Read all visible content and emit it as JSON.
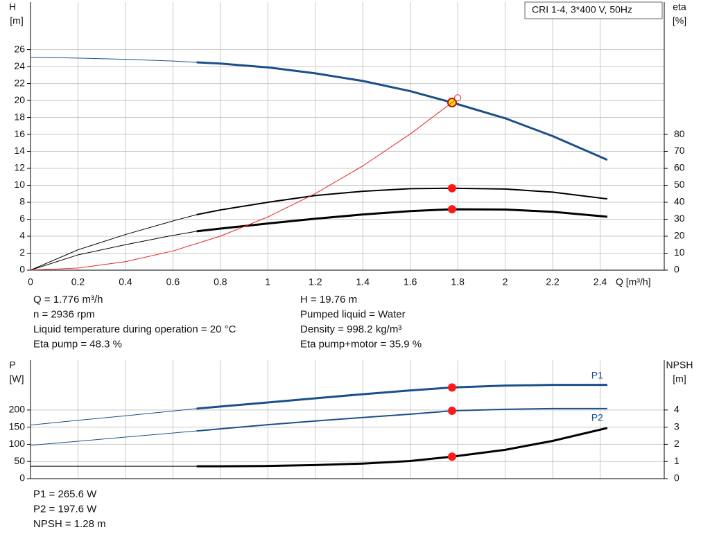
{
  "chart_data": [
    {
      "type": "line",
      "title": "CRI 1-4, 3*400 V, 50Hz",
      "ylabel": "H",
      "yunit": "[m]",
      "y2label": "eta",
      "y2unit": "[%]",
      "xlabel": "Q [m³/h]",
      "x": [
        0,
        0.2,
        0.4,
        0.6,
        0.7,
        0.8,
        1.0,
        1.2,
        1.4,
        1.6,
        1.776,
        2.0,
        2.2,
        2.43
      ],
      "xlim": [
        0,
        2.67
      ],
      "xticks": [
        0,
        0.2,
        0.4,
        0.6,
        0.8,
        1.0,
        1.2,
        1.4,
        1.6,
        1.8,
        2.0,
        2.2,
        2.4
      ],
      "xtick_labels": true,
      "ylim": [
        0,
        31.6
      ],
      "yticks": [
        0,
        2,
        4,
        6,
        8,
        10,
        12,
        14,
        16,
        18,
        20,
        22,
        24,
        26
      ],
      "y2lim": [
        0,
        158
      ],
      "y2ticks": [
        0,
        10,
        20,
        30,
        40,
        50,
        60,
        70,
        80
      ],
      "grid": true,
      "thick_range": [
        0.7,
        2.43
      ],
      "marker_x": 1.776,
      "series": [
        {
          "color": "#1a4f8a",
          "width": 3,
          "values": [
            25.1,
            25.0,
            24.85,
            24.65,
            24.5,
            24.35,
            23.9,
            23.2,
            22.3,
            21.1,
            19.76,
            17.9,
            15.8,
            13.0
          ],
          "marker": "duty-yellow"
        },
        {
          "color": "#000000",
          "width": 2,
          "axis": "y2",
          "values": [
            0,
            12,
            21,
            29,
            32.7,
            35.5,
            40,
            44,
            46.5,
            48,
            48.3,
            47.8,
            46,
            42
          ],
          "marker": "duty"
        },
        {
          "color": "#000000",
          "width": 3,
          "axis": "y2",
          "values": [
            0,
            9,
            15,
            20.5,
            22.9,
            24.5,
            27.5,
            30.3,
            32.8,
            34.8,
            35.9,
            35.7,
            34.4,
            31.5
          ],
          "marker": "duty"
        },
        {
          "color": "#e82020",
          "width": 1,
          "x": [
            0,
            0.2,
            0.4,
            0.6,
            0.8,
            1.0,
            1.2,
            1.4,
            1.6,
            1.776,
            1.8
          ],
          "values": [
            0,
            0.25,
            1.0,
            2.26,
            4.01,
            6.27,
            9.03,
            12.29,
            16.05,
            19.76,
            20.31
          ],
          "marker": "end-open"
        }
      ]
    },
    {
      "type": "line",
      "ylabel": "P",
      "yunit": "[W]",
      "y2label": "NPSH",
      "y2unit": "[m]",
      "x": [
        0,
        0.2,
        0.4,
        0.6,
        0.7,
        0.8,
        1.0,
        1.2,
        1.4,
        1.6,
        1.776,
        2.0,
        2.2,
        2.43
      ],
      "xlim": [
        0,
        2.67
      ],
      "xticks": [
        0,
        0.2,
        0.4,
        0.6,
        0.8,
        1.0,
        1.2,
        1.4,
        1.6,
        1.8,
        2.0,
        2.2,
        2.4
      ],
      "xtick_labels": false,
      "ylim": [
        0,
        345
      ],
      "yticks": [
        0,
        50,
        100,
        150,
        200
      ],
      "y2lim": [
        0,
        6.9
      ],
      "y2ticks": [
        0,
        1,
        2,
        3,
        4
      ],
      "grid": true,
      "thick_range": [
        0.7,
        2.43
      ],
      "marker_x": 1.776,
      "series": [
        {
          "name": "P1",
          "label_side": "above",
          "color": "#1a4f8a",
          "width": 3,
          "values": [
            156,
            170,
            183,
            197,
            204,
            210,
            222,
            234,
            246,
            257,
            265.6,
            271,
            273,
            273
          ],
          "marker": "duty"
        },
        {
          "name": "P2",
          "label_side": "below",
          "color": "#1a4f8a",
          "width": 2,
          "values": [
            97,
            109,
            121,
            133,
            139,
            145,
            157,
            168,
            178,
            188,
            197.6,
            202,
            204,
            204
          ],
          "marker": "duty"
        },
        {
          "color": "#000000",
          "width": 3,
          "axis": "y2",
          "values": [
            0.72,
            0.72,
            0.72,
            0.72,
            0.72,
            0.72,
            0.74,
            0.79,
            0.88,
            1.03,
            1.28,
            1.68,
            2.2,
            2.95
          ],
          "marker": "duty"
        }
      ]
    }
  ],
  "readout_top": {
    "left": [
      "Q = 1.776 m³/h",
      "n = 2936 rpm",
      "Liquid temperature during operation = 20 °C",
      "Eta pump = 48.3 %"
    ],
    "right": [
      "H = 19.76 m",
      "Pumped liquid = Water",
      "Density = 998.2 kg/m³",
      "Eta pump+motor = 35.9 %"
    ]
  },
  "readout_bottom": [
    "P1 = 265.6 W",
    "P2 = 197.6 W",
    "NPSH = 1.28 m"
  ]
}
